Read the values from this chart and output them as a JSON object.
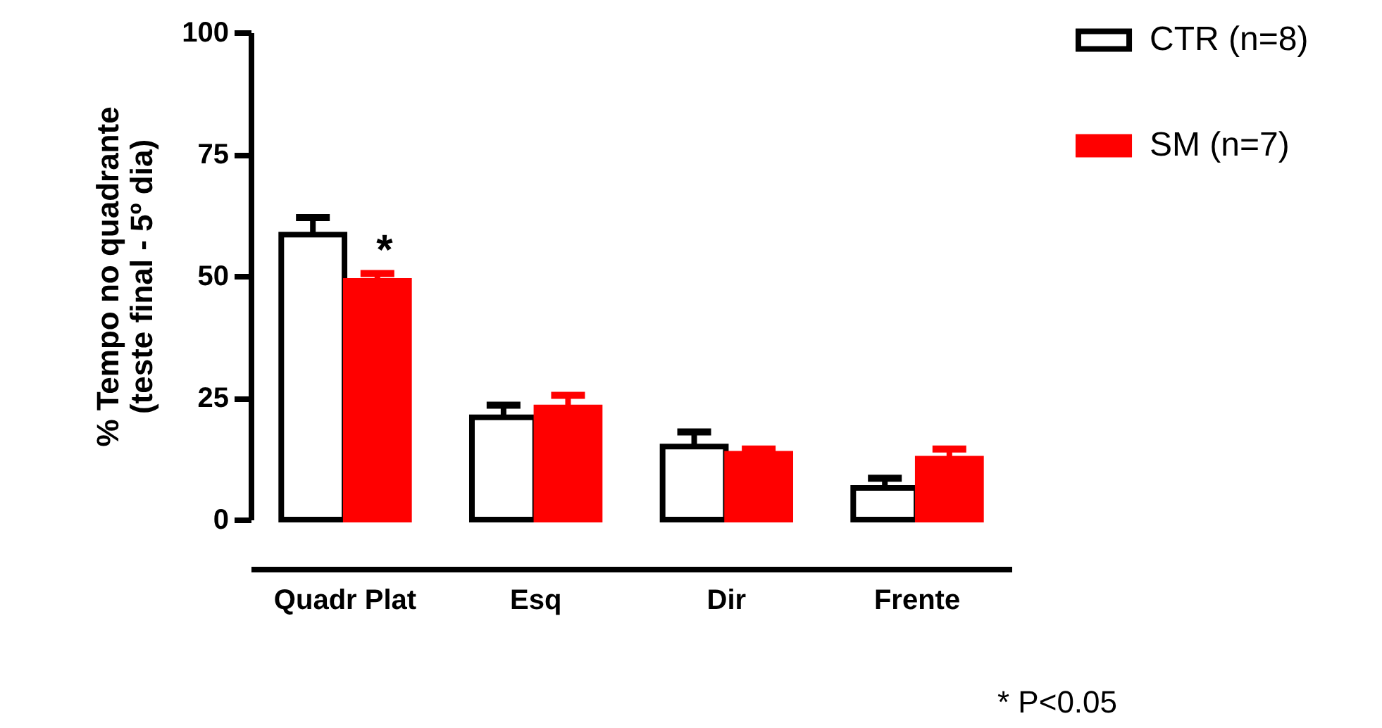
{
  "chart_data": {
    "type": "bar",
    "ylabel": "% Tempo no quadrante\n(teste final - 5º dia)",
    "categories": [
      "Quadr Plat",
      "Esq",
      "Dir",
      "Frente"
    ],
    "series": [
      {
        "name": "CTR (n=8)",
        "color": "#ffffff",
        "values": [
          58.5,
          21,
          15,
          6.5
        ],
        "errors": [
          [
            58.5,
            62
          ],
          [
            21,
            23.5
          ],
          [
            15,
            18
          ],
          [
            6.5,
            8.5
          ]
        ]
      },
      {
        "name": "SM   (n=7)",
        "color": "#ff0000",
        "values": [
          49,
          23,
          13.5,
          12.5
        ],
        "errors": [
          [
            49,
            50.5
          ],
          [
            23,
            25.5
          ],
          [
            13.5,
            14.5
          ],
          [
            12.5,
            14.5
          ]
        ]
      }
    ],
    "ylim": [
      0,
      100
    ],
    "yticks": [
      0,
      25,
      50,
      75,
      100
    ],
    "grid": false,
    "legend": "top right",
    "annotations": [
      {
        "text": "*",
        "x": "Quadr Plat",
        "y": 55
      },
      "* P<0.05"
    ]
  }
}
